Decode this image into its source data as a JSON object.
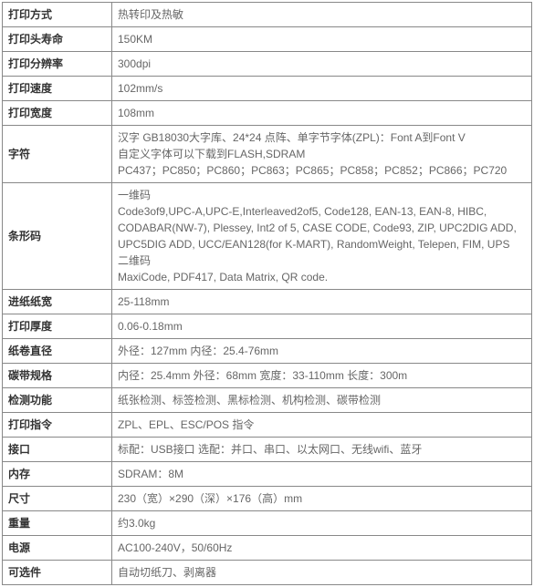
{
  "table": {
    "label_width": "120px",
    "border_color": "#888888",
    "label_color": "#333333",
    "value_color": "#666666",
    "font_size": 12,
    "rows": [
      {
        "label": "打印方式",
        "value": "热转印及热敏"
      },
      {
        "label": "打印头寿命",
        "value": "150KM"
      },
      {
        "label": "打印分辨率",
        "value": "300dpi"
      },
      {
        "label": "打印速度",
        "value": "102mm/s"
      },
      {
        "label": "打印宽度",
        "value": "108mm"
      },
      {
        "label": "字符",
        "value": "汉字 GB18030大字库、24*24 点阵、单字节字体(ZPL)：Font A到Font V\n自定义字体可以下载到FLASH,SDRAM\nPC437；PC850；PC860；PC863；PC865；PC858；PC852；PC866；PC720"
      },
      {
        "label": "条形码",
        "value": "一维码\nCode3of9,UPC-A,UPC-E,Interleaved2of5, Code128, EAN-13, EAN-8, HIBC, CODABAR(NW-7), Plessey, Int2 of 5, CASE CODE, Code93, ZIP, UPC2DIG ADD, UPC5DIG ADD, UCC/EAN128(for K-MART), RandomWeight, Telepen, FIM, UPS\n二维码\nMaxiCode, PDF417, Data Matrix,  QR code."
      },
      {
        "label": "进纸纸宽",
        "value": "25-118mm"
      },
      {
        "label": "打印厚度",
        "value": "0.06-0.18mm"
      },
      {
        "label": "纸卷直径",
        "value": "外径：127mm    内径：25.4-76mm"
      },
      {
        "label": "碳带规格",
        "value": "内径：25.4mm  外径：68mm  宽度：33-110mm 长度：300m"
      },
      {
        "label": "检测功能",
        "value": "纸张检测、标签检测、黑标检测、机构检测、碳带检测"
      },
      {
        "label": "打印指令",
        "value": "ZPL、EPL、ESC/POS 指令"
      },
      {
        "label": "接口",
        "value": "标配：USB接口    选配：并口、串口、以太网口、无线wifi、蓝牙"
      },
      {
        "label": "内存",
        "value": "SDRAM：8M"
      },
      {
        "label": "尺寸",
        "value": "230（宽）×290（深）×176（高）mm"
      },
      {
        "label": "重量",
        "value": "约3.0kg"
      },
      {
        "label": "电源",
        "value": "AC100-240V，50/60Hz"
      },
      {
        "label": "可选件",
        "value": "自动切纸刀、剥离器"
      }
    ]
  }
}
